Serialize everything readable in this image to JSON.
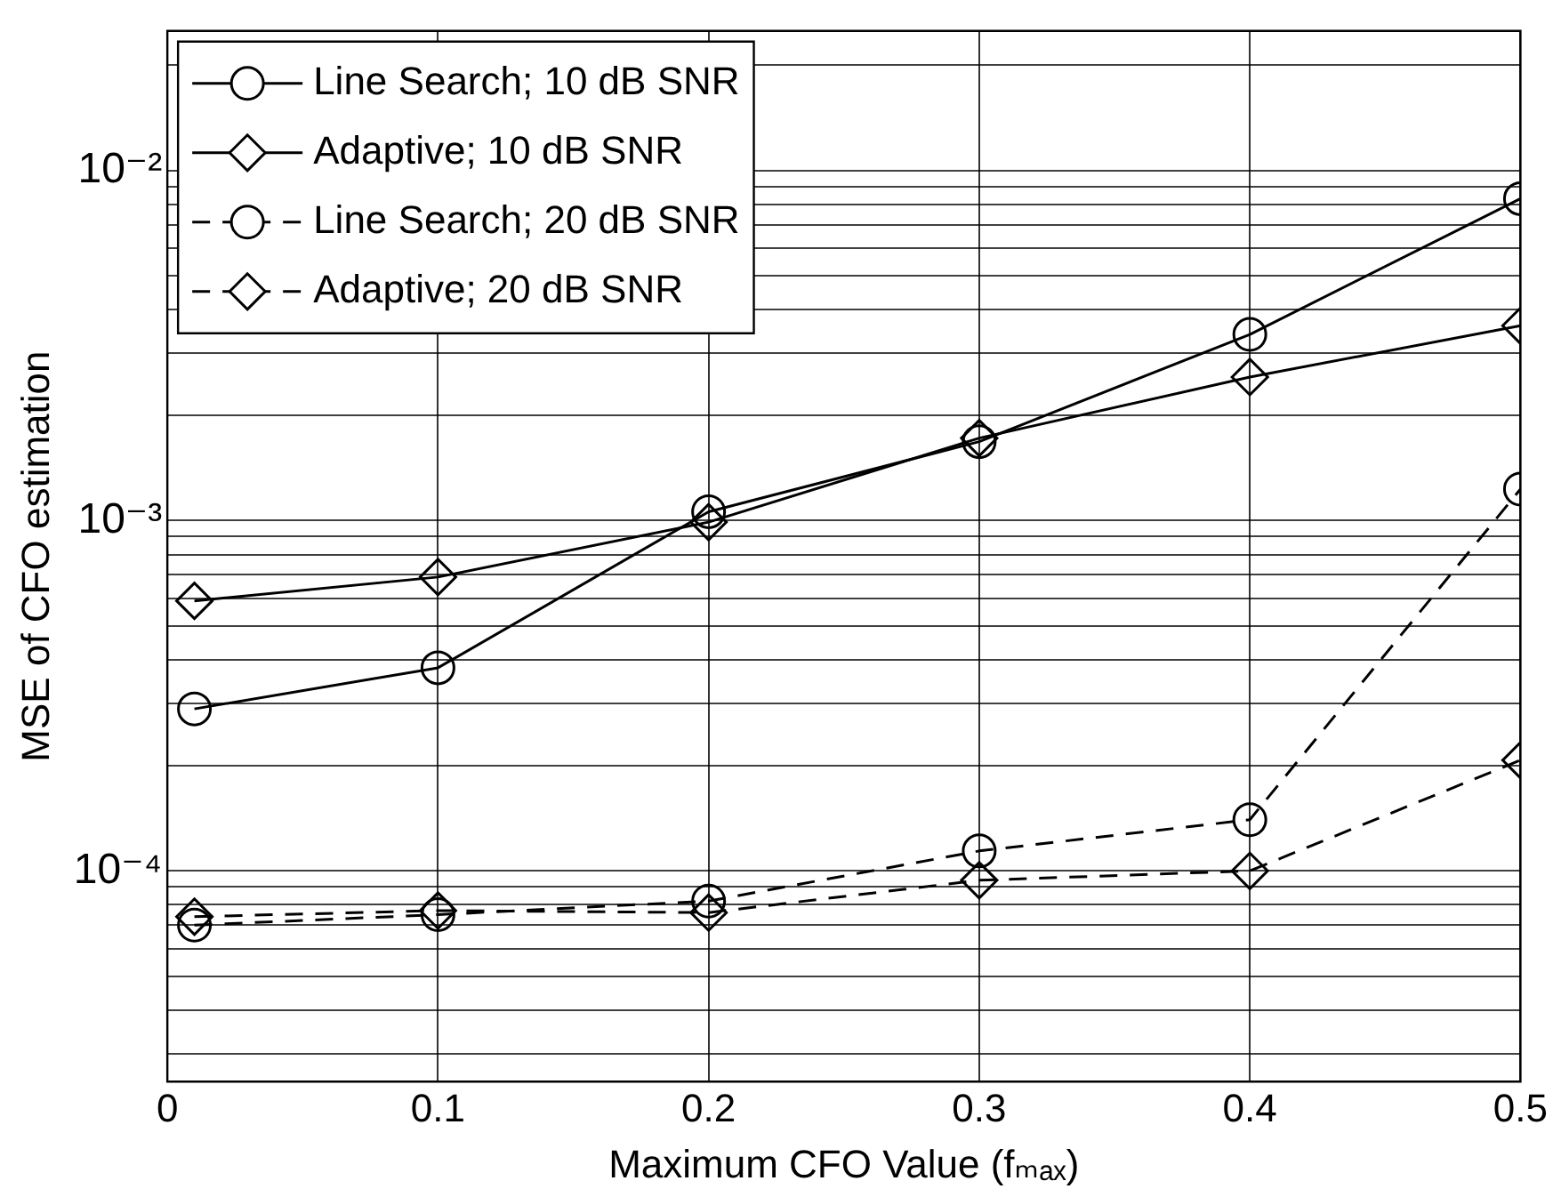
{
  "chart_data": {
    "type": "line",
    "xlabel": "Maximum CFO Value (fₘₐₓ)",
    "ylabel": "MSE of CFO estimation",
    "x": [
      0.01,
      0.1,
      0.2,
      0.3,
      0.4,
      0.5
    ],
    "series": [
      {
        "name": "Line Search; 10 dB SNR",
        "color": "#000000",
        "marker": "circle",
        "line_style": "solid",
        "values": [
          0.00029,
          0.00038,
          0.00106,
          0.00168,
          0.0034,
          0.0083
        ]
      },
      {
        "name": "Adaptive; 10 dB SNR",
        "color": "#000000",
        "marker": "diamond",
        "line_style": "solid",
        "values": [
          0.00059,
          0.00069,
          0.00099,
          0.00172,
          0.00257,
          0.0036
        ]
      },
      {
        "name": "Line Search; 20 dB SNR",
        "color": "#000000",
        "marker": "circle",
        "line_style": "dashed",
        "values": [
          7e-05,
          7.5e-05,
          8.2e-05,
          0.000114,
          0.00014,
          0.00123
        ]
      },
      {
        "name": "Adaptive; 20 dB SNR",
        "color": "#000000",
        "marker": "diamond",
        "line_style": "dashed",
        "values": [
          7.4e-05,
          7.7e-05,
          7.6e-05,
          9.4e-05,
          0.0001,
          0.000207
        ]
      }
    ],
    "log": "y",
    "grid": true,
    "legend": "top left",
    "xlim": [
      0,
      0.5
    ],
    "xticks": [
      0,
      0.1,
      0.2,
      0.3,
      0.4,
      0.5
    ],
    "ylim": [
      2.5e-05,
      0.025
    ],
    "yticks": [
      {
        "value": 3e-05,
        "label": null
      },
      {
        "value": 4e-05,
        "label": null
      },
      {
        "value": 5e-05,
        "label": null
      },
      {
        "value": 6e-05,
        "label": null
      },
      {
        "value": 7e-05,
        "label": null
      },
      {
        "value": 8e-05,
        "label": null
      },
      {
        "value": 9e-05,
        "label": null
      },
      {
        "value": 0.0001,
        "label": "10⁻⁴"
      },
      {
        "value": 0.0002,
        "label": null
      },
      {
        "value": 0.0003,
        "label": null
      },
      {
        "value": 0.0004,
        "label": null
      },
      {
        "value": 0.0005,
        "label": null
      },
      {
        "value": 0.0006,
        "label": null
      },
      {
        "value": 0.0007,
        "label": null
      },
      {
        "value": 0.0008,
        "label": null
      },
      {
        "value": 0.0009,
        "label": null
      },
      {
        "value": 0.001,
        "label": "10⁻³"
      },
      {
        "value": 0.002,
        "label": null
      },
      {
        "value": 0.003,
        "label": null
      },
      {
        "value": 0.004,
        "label": null
      },
      {
        "value": 0.005,
        "label": null
      },
      {
        "value": 0.006,
        "label": null
      },
      {
        "value": 0.007,
        "label": null
      },
      {
        "value": 0.008,
        "label": null
      },
      {
        "value": 0.009,
        "label": null
      },
      {
        "value": 0.01,
        "label": "10⁻²"
      },
      {
        "value": 0.02,
        "label": null
      }
    ]
  }
}
